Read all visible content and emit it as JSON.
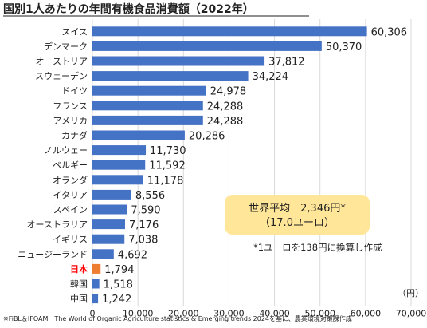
{
  "chart_data": {
    "type": "bar",
    "orientation": "horizontal",
    "title": "国別1人あたりの年間有機食品消費額（2022年）",
    "categories": [
      "スイス",
      "デンマーク",
      "オーストリア",
      "スウェーデン",
      "ドイツ",
      "フランス",
      "アメリカ",
      "カナダ",
      "ノルウェー",
      "ベルギー",
      "オランダ",
      "イタリア",
      "スペイン",
      "オーストラリア",
      "イギリス",
      "ニュージーランド",
      "日本",
      "韓国",
      "中国"
    ],
    "values": [
      60306,
      50370,
      37812,
      34224,
      24978,
      24288,
      24288,
      20286,
      11730,
      11592,
      11178,
      8556,
      7590,
      7176,
      7038,
      4692,
      1794,
      1518,
      1242
    ],
    "value_labels": [
      "60,306",
      "50,370",
      "37,812",
      "34,224",
      "24,978",
      "24,288",
      "24,288",
      "20,286",
      "11,730",
      "11,592",
      "11,178",
      "8,556",
      "7,590",
      "7,176",
      "7,038",
      "4,692",
      "1,794",
      "1,518",
      "1,242"
    ],
    "highlight_index": 16,
    "xlim": [
      0,
      70000
    ],
    "xticks": [
      0,
      10000,
      20000,
      30000,
      40000,
      50000,
      60000,
      70000
    ],
    "xtick_labels": [
      "0",
      "10,000",
      "20,000",
      "30,000",
      "40,000",
      "50,000",
      "60,000",
      "70,000"
    ],
    "unit": "（円）",
    "grid": true,
    "colors": {
      "bar": "#4472C4",
      "highlight": "#ED7D31",
      "highlight_label": "#FF0000",
      "callout_bg": "#FFE699"
    }
  },
  "callout": {
    "line1": "世界平均　2,346円*",
    "line2": "（17.0ユーロ）"
  },
  "note": "*1ユーロを138円に換算し作成",
  "source": "※FiBL＆IFOAM　The World of Organic Agriculture statistics & Emerging trends 2024を基に、農業環境対策課作成"
}
